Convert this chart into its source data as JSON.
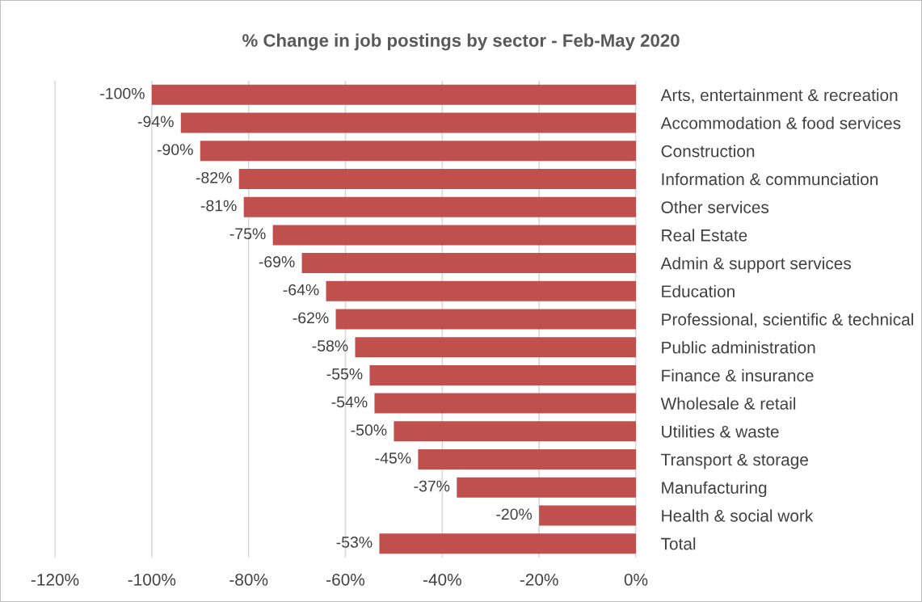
{
  "chart_data": {
    "type": "bar",
    "orientation": "horizontal",
    "title": "% Change in job postings by sector - Feb-May 2020",
    "categories": [
      "Arts, entertainment & recreation",
      "Accommodation & food services",
      "Construction",
      "Information & communciation",
      "Other services",
      "Real Estate",
      "Admin & support services",
      "Education",
      "Professional, scientific & technical",
      "Public administration",
      "Finance & insurance",
      "Wholesale & retail",
      "Utilities & waste",
      "Transport & storage",
      "Manufacturing",
      "Health & social work",
      "Total"
    ],
    "values": [
      -100,
      -94,
      -90,
      -82,
      -81,
      -75,
      -69,
      -64,
      -62,
      -58,
      -55,
      -54,
      -50,
      -45,
      -37,
      -20,
      -53
    ],
    "value_labels": [
      "-100%",
      "-94%",
      "-90%",
      "-82%",
      "-81%",
      "-75%",
      "-69%",
      "-64%",
      "-62%",
      "-58%",
      "-55%",
      "-54%",
      "-50%",
      "-45%",
      "-37%",
      "-20%",
      "-53%"
    ],
    "color": "#c0504d",
    "xlim": [
      -120,
      0
    ],
    "xticks": [
      {
        "value": -120,
        "label": "-120%"
      },
      {
        "value": -100,
        "label": "-100%"
      },
      {
        "value": -80,
        "label": "-80%"
      },
      {
        "value": -60,
        "label": "-60%"
      },
      {
        "value": -40,
        "label": "-40%"
      },
      {
        "value": -20,
        "label": "-20%"
      },
      {
        "value": 0,
        "label": "0%"
      }
    ],
    "grid": "x",
    "legend": false
  }
}
